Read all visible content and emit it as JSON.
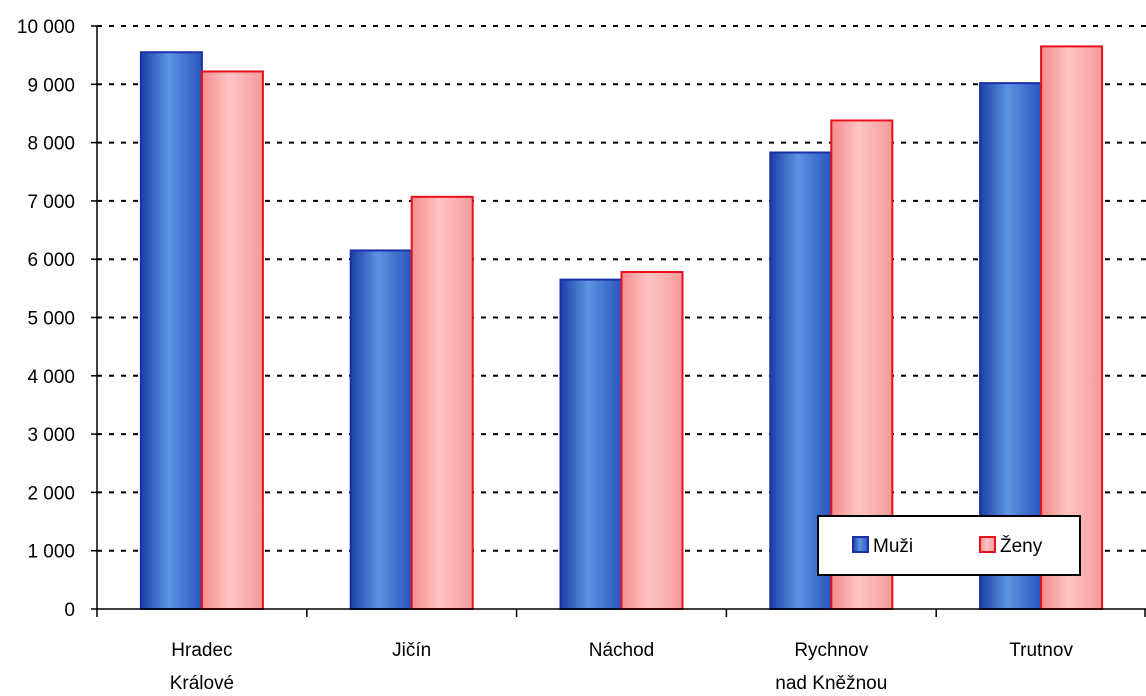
{
  "chart_data": {
    "type": "bar",
    "categories": [
      [
        "Hradec",
        "Králové"
      ],
      [
        "Jičín"
      ],
      [
        "Náchod"
      ],
      [
        "Rychnov",
        "nad Kněžnou"
      ],
      [
        "Trutnov"
      ]
    ],
    "series": [
      {
        "name": "Muži",
        "values": [
          9550,
          6150,
          5650,
          7830,
          9020
        ],
        "color": "#3f73c9",
        "edge": "#1c2fa8"
      },
      {
        "name": "Ženy",
        "values": [
          9220,
          7070,
          5780,
          8380,
          9650
        ],
        "color": "#f7a8a8",
        "edge": "#e8101a"
      }
    ],
    "ylim": [
      0,
      10000
    ],
    "yticks": [
      0,
      1000,
      2000,
      3000,
      4000,
      5000,
      6000,
      7000,
      8000,
      9000,
      10000
    ],
    "ytick_labels": [
      "0",
      "1 000",
      "2 000",
      "3 000",
      "4 000",
      "5 000",
      "6 000",
      "7 000",
      "8 000",
      "9 000",
      "10 000"
    ],
    "grid": "dashed horizontal",
    "legend_position": "bottom-right",
    "title": "",
    "xlabel": "",
    "ylabel": ""
  }
}
